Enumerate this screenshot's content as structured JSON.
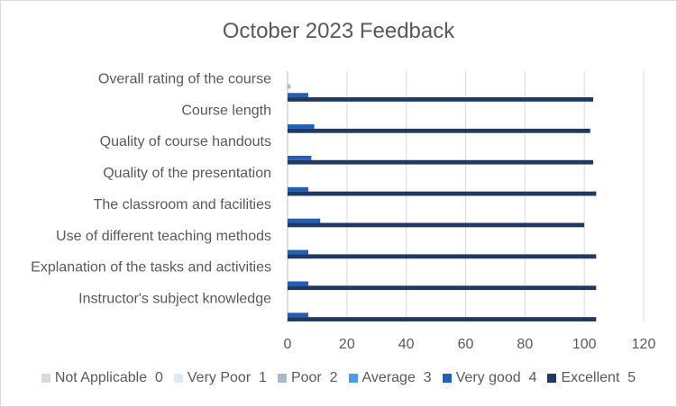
{
  "chart_data": {
    "type": "bar",
    "orientation": "horizontal",
    "title": "October 2023 Feedback",
    "categories": [
      "Overall rating of the course",
      "Course length",
      "Quality of course handouts",
      "Quality of the presentation",
      "The classroom and facilities",
      "Use of different teaching methods",
      "Explanation of the tasks and activities",
      "Instructor's subject knowledge"
    ],
    "series": [
      {
        "name": "Not Applicable  0",
        "color": "#d9d9d9",
        "values": [
          0,
          0,
          0,
          0,
          0,
          0,
          0,
          0
        ]
      },
      {
        "name": "Very Poor  1",
        "color": "#deebf7",
        "values": [
          0,
          0,
          0,
          0,
          0,
          0,
          0,
          0
        ]
      },
      {
        "name": "Poor  2",
        "color": "#adb9ca",
        "values": [
          1,
          0,
          0,
          0,
          0,
          0,
          0,
          0
        ]
      },
      {
        "name": "Average  3",
        "color": "#4c9be8",
        "values": [
          0,
          0,
          0,
          0,
          0,
          0,
          0,
          0
        ]
      },
      {
        "name": "Very good  4",
        "color": "#1f5fc0",
        "values": [
          7,
          9,
          8,
          7,
          11,
          7,
          7,
          7
        ]
      },
      {
        "name": "Excellent  5",
        "color": "#203864",
        "values": [
          103,
          102,
          103,
          104,
          100,
          104,
          104,
          104
        ]
      }
    ],
    "xlim": [
      0,
      120
    ],
    "xticks": [
      0,
      20,
      40,
      60,
      80,
      100,
      120
    ],
    "xlabel": "",
    "ylabel": "",
    "grid": "vertical",
    "legend": "bottom"
  }
}
